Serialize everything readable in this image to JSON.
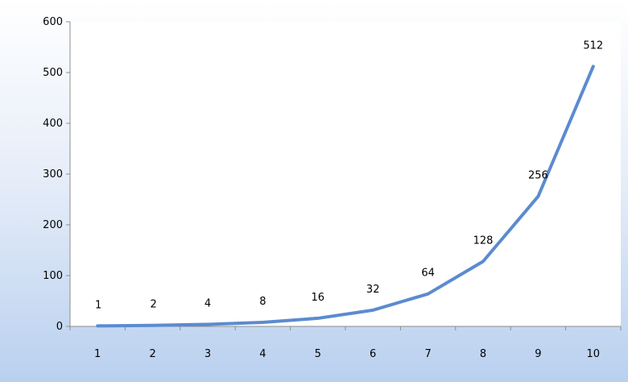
{
  "chart_data": {
    "type": "line",
    "title": "",
    "xlabel": "",
    "ylabel": "",
    "categories": [
      "1",
      "2",
      "3",
      "4",
      "5",
      "6",
      "7",
      "8",
      "9",
      "10"
    ],
    "series": [
      {
        "values": [
          1,
          2,
          4,
          8,
          16,
          32,
          64,
          128,
          256,
          512
        ],
        "color": "#5b8bd0"
      }
    ],
    "data_labels": [
      "1",
      "2",
      "4",
      "8",
      "16",
      "32",
      "64",
      "128",
      "256",
      "512"
    ],
    "y_ticks": [
      "0",
      "100",
      "200",
      "300",
      "400",
      "500",
      "600"
    ],
    "ylim": [
      0,
      600
    ],
    "grid": false,
    "legend": "none",
    "plot_background": "#ffffff",
    "axis_color": "#8c8c8c"
  }
}
